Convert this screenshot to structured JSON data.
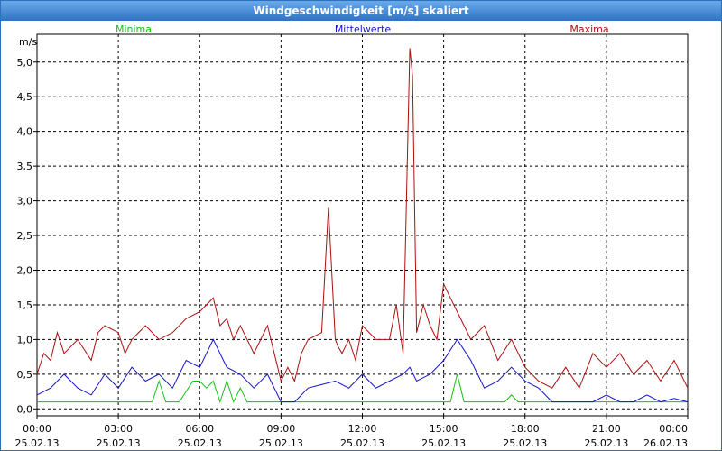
{
  "window": {
    "title": "Windgeschwindigkeit [m/s] skaliert"
  },
  "colors": {
    "minima": "#12c012",
    "mittelwerte": "#1414c8",
    "maxima": "#aa1010",
    "grid": "#000000"
  },
  "chart_data": {
    "type": "line",
    "title": "Windgeschwindigkeit [m/s] skaliert",
    "ylabel": "m/s",
    "xlabel": "",
    "ylim": [
      -0.1,
      5.4
    ],
    "xlim": [
      0,
      24
    ],
    "grid": true,
    "legend_placement": "top",
    "y_ticks": [
      "0,0",
      "0,5",
      "1,0",
      "1,5",
      "2,0",
      "2,5",
      "3,0",
      "3,5",
      "4,0",
      "4,5",
      "5,0"
    ],
    "x_ticks": [
      {
        "time": "00:00",
        "date": "25.02.13"
      },
      {
        "time": "03:00",
        "date": "25.02.13"
      },
      {
        "time": "06:00",
        "date": "25.02.13"
      },
      {
        "time": "09:00",
        "date": "25.02.13"
      },
      {
        "time": "12:00",
        "date": "25.02.13"
      },
      {
        "time": "15:00",
        "date": "25.02.13"
      },
      {
        "time": "18:00",
        "date": "25.02.13"
      },
      {
        "time": "21:00",
        "date": "25.02.13"
      },
      {
        "time": "00:00",
        "date": "26.02.13"
      }
    ],
    "series": [
      {
        "name": "Minima",
        "x": [
          0,
          4.25,
          4.5,
          4.75,
          5.25,
          5.75,
          6,
          6.25,
          6.5,
          6.75,
          7,
          7.25,
          7.5,
          7.75,
          8,
          15.25,
          15.5,
          15.75,
          17.25,
          17.5,
          17.75,
          24
        ],
        "values": [
          0.1,
          0.1,
          0.4,
          0.1,
          0.1,
          0.4,
          0.4,
          0.3,
          0.4,
          0.1,
          0.4,
          0.1,
          0.3,
          0.1,
          0.1,
          0.1,
          0.5,
          0.1,
          0.1,
          0.2,
          0.1,
          0.1
        ]
      },
      {
        "name": "Mittelwerte",
        "x": [
          0,
          0.5,
          1,
          1.5,
          2,
          2.5,
          3,
          3.5,
          4,
          4.5,
          5,
          5.5,
          6,
          6.5,
          7,
          7.5,
          8,
          8.5,
          9,
          9.5,
          10,
          10.5,
          11,
          11.5,
          12,
          12.5,
          13,
          13.5,
          13.75,
          14,
          14.5,
          15,
          15.5,
          16,
          16.5,
          17,
          17.5,
          18,
          18.5,
          19,
          19.5,
          20,
          20.5,
          21,
          21.5,
          22,
          22.5,
          23,
          23.5,
          24
        ],
        "values": [
          0.2,
          0.3,
          0.5,
          0.3,
          0.2,
          0.5,
          0.3,
          0.6,
          0.4,
          0.5,
          0.3,
          0.7,
          0.6,
          1.0,
          0.6,
          0.5,
          0.3,
          0.5,
          0.1,
          0.1,
          0.3,
          0.35,
          0.4,
          0.3,
          0.5,
          0.3,
          0.4,
          0.5,
          0.6,
          0.4,
          0.5,
          0.7,
          1.0,
          0.7,
          0.3,
          0.4,
          0.6,
          0.4,
          0.3,
          0.1,
          0.1,
          0.1,
          0.1,
          0.2,
          0.1,
          0.1,
          0.2,
          0.1,
          0.15,
          0.1
        ]
      },
      {
        "name": "Maxima",
        "x": [
          0,
          0.25,
          0.5,
          0.75,
          1,
          1.5,
          2,
          2.25,
          2.5,
          3,
          3.25,
          3.5,
          4,
          4.5,
          5,
          5.5,
          6,
          6.25,
          6.5,
          6.75,
          7,
          7.25,
          7.5,
          8,
          8.5,
          9,
          9.25,
          9.5,
          9.75,
          10,
          10.5,
          10.75,
          11,
          11.1,
          11.25,
          11.5,
          11.75,
          12,
          12.5,
          13,
          13.25,
          13.5,
          13.75,
          13.85,
          14,
          14.25,
          14.5,
          14.75,
          15,
          15.25,
          15.5,
          15.75,
          16,
          16.5,
          17,
          17.5,
          18,
          18.5,
          19,
          19.5,
          20,
          20.5,
          21,
          21.5,
          22,
          22.5,
          23,
          23.5,
          24
        ],
        "values": [
          0.5,
          0.8,
          0.7,
          1.1,
          0.8,
          1.0,
          0.7,
          1.1,
          1.2,
          1.1,
          0.8,
          1.0,
          1.2,
          1.0,
          1.1,
          1.3,
          1.4,
          1.5,
          1.6,
          1.2,
          1.3,
          1.0,
          1.2,
          0.8,
          1.2,
          0.4,
          0.6,
          0.4,
          0.8,
          1.0,
          1.1,
          2.9,
          1.0,
          0.9,
          0.8,
          1.0,
          0.7,
          1.2,
          1.0,
          1.0,
          1.5,
          0.8,
          5.2,
          4.8,
          1.1,
          1.5,
          1.2,
          1.0,
          1.8,
          1.6,
          1.4,
          1.2,
          1.0,
          1.2,
          0.7,
          1.0,
          0.6,
          0.4,
          0.3,
          0.6,
          0.3,
          0.8,
          0.6,
          0.8,
          0.5,
          0.7,
          0.4,
          0.7,
          0.3
        ]
      }
    ]
  }
}
